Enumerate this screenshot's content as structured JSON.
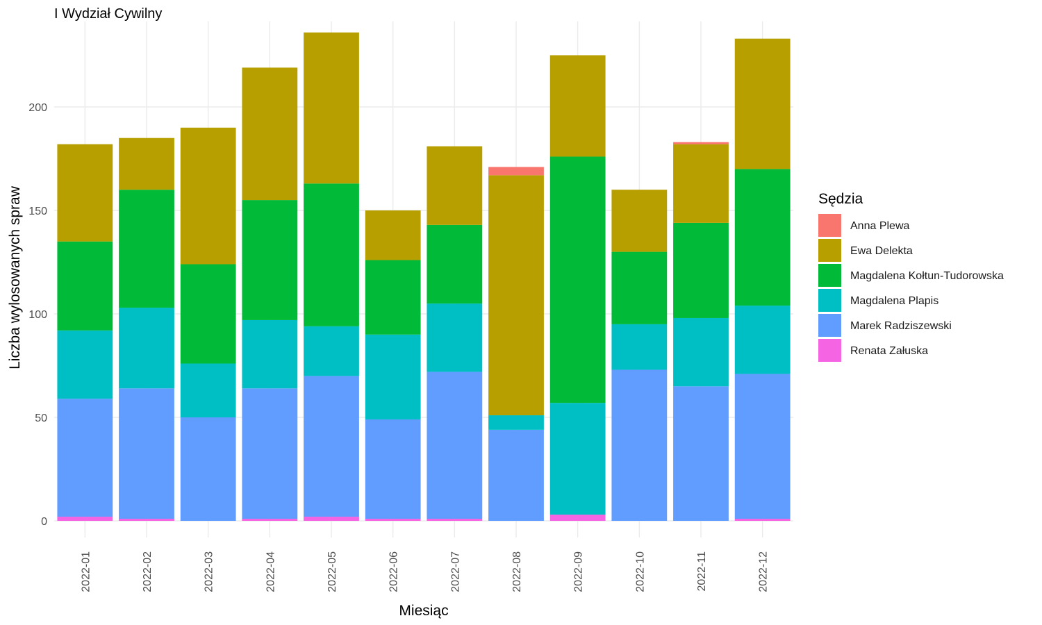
{
  "chart_data": {
    "type": "bar",
    "stacked": true,
    "title": "I Wydział Cywilny",
    "xlabel": "Miesiąc",
    "ylabel": "Liczba wylosowanych spraw",
    "ylim": [
      0,
      240
    ],
    "yticks": [
      0,
      50,
      100,
      150,
      200
    ],
    "grid": true,
    "legend_title": "Sędzia",
    "legend_position": "right",
    "categories": [
      "2022-01",
      "2022-02",
      "2022-03",
      "2022-04",
      "2022-05",
      "2022-06",
      "2022-07",
      "2022-08",
      "2022-09",
      "2022-10",
      "2022-11",
      "2022-12"
    ],
    "series": [
      {
        "name": "Renata Załuska",
        "color": "#F564E3",
        "values": [
          2,
          1,
          0,
          1,
          2,
          1,
          1,
          0,
          3,
          0,
          0,
          1
        ]
      },
      {
        "name": "Marek Radziszewski",
        "color": "#619CFF",
        "values": [
          57,
          63,
          50,
          63,
          68,
          48,
          71,
          44,
          0,
          73,
          65,
          70
        ]
      },
      {
        "name": "Magdalena Plapis",
        "color": "#00BFC4",
        "values": [
          33,
          39,
          26,
          33,
          24,
          41,
          33,
          7,
          54,
          22,
          33,
          33
        ]
      },
      {
        "name": "Magdalena Kołtun-Tudorowska",
        "color": "#00BA38",
        "values": [
          43,
          57,
          48,
          58,
          69,
          36,
          38,
          0,
          119,
          35,
          46,
          66
        ]
      },
      {
        "name": "Ewa Delekta",
        "color": "#B79F00",
        "values": [
          47,
          25,
          66,
          64,
          73,
          24,
          38,
          116,
          49,
          30,
          38,
          63
        ]
      },
      {
        "name": "Anna Plewa",
        "color": "#F8766D",
        "values": [
          0,
          0,
          0,
          0,
          0,
          0,
          0,
          4,
          0,
          0,
          1,
          0
        ]
      }
    ],
    "legend_order": [
      "Anna Plewa",
      "Ewa Delekta",
      "Magdalena Kołtun-Tudorowska",
      "Magdalena Plapis",
      "Marek Radziszewski",
      "Renata Załuska"
    ]
  }
}
